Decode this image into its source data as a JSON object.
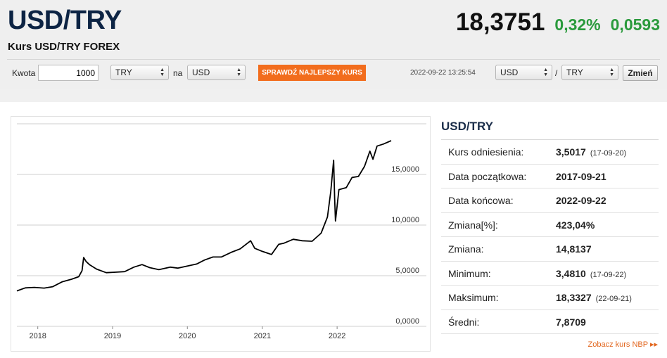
{
  "header": {
    "title": "USD/TRY",
    "subtitle": "Kurs USD/TRY FOREX",
    "price": "18,3751",
    "change_percent": "0,32%",
    "change_value": "0,0593",
    "change_color": "#2a9a3c"
  },
  "converter": {
    "amount_label": "Kwota",
    "amount_value": "1000",
    "from_currency": "TRY",
    "to_label": "na",
    "to_currency": "USD",
    "best_rate_button": "SPRAWDŹ NAJLEPSZY KURS",
    "timestamp": "2022-09-22 13:25:54",
    "pair_base": "USD",
    "pair_separator": "/",
    "pair_quote": "TRY",
    "change_button": "Zmień",
    "accent_color": "#f26d1d"
  },
  "chart_data": {
    "type": "line",
    "title": "",
    "xlabel": "",
    "ylabel": "",
    "x_ticks": [
      "2018",
      "2019",
      "2020",
      "2021",
      "2022"
    ],
    "y_ticks": [
      "0,0000",
      "5,0000",
      "10,0000",
      "15,0000"
    ],
    "ylim": [
      0,
      20
    ],
    "xlim": [
      "2017-09-21",
      "2022-09-22"
    ],
    "grid": true,
    "series": [
      {
        "name": "",
        "x": [
          "2017-09-21",
          "2017-11-01",
          "2017-12-15",
          "2018-02-01",
          "2018-03-15",
          "2018-05-01",
          "2018-06-15",
          "2018-07-20",
          "2018-08-05",
          "2018-08-13",
          "2018-08-25",
          "2018-09-10",
          "2018-10-15",
          "2018-12-01",
          "2019-01-15",
          "2019-03-01",
          "2019-04-15",
          "2019-05-25",
          "2019-07-01",
          "2019-08-15",
          "2019-10-10",
          "2019-11-15",
          "2020-01-01",
          "2020-02-15",
          "2020-03-25",
          "2020-05-05",
          "2020-06-15",
          "2020-08-01",
          "2020-09-15",
          "2020-11-05",
          "2020-11-25",
          "2021-01-01",
          "2021-02-15",
          "2021-03-22",
          "2021-04-15",
          "2021-06-01",
          "2021-07-15",
          "2021-09-01",
          "2021-10-15",
          "2021-11-15",
          "2021-12-01",
          "2021-12-15",
          "2021-12-20",
          "2021-12-24",
          "2022-01-10",
          "2022-02-15",
          "2022-03-15",
          "2022-04-15",
          "2022-05-15",
          "2022-06-10",
          "2022-06-25",
          "2022-07-15",
          "2022-08-15",
          "2022-09-22"
        ],
        "y": [
          3.5,
          3.8,
          3.85,
          3.78,
          3.92,
          4.4,
          4.65,
          4.9,
          5.5,
          6.8,
          6.4,
          6.1,
          5.65,
          5.3,
          5.35,
          5.4,
          5.85,
          6.1,
          5.8,
          5.6,
          5.85,
          5.75,
          5.95,
          6.15,
          6.55,
          6.85,
          6.85,
          7.3,
          7.65,
          8.45,
          7.7,
          7.4,
          7.1,
          8.1,
          8.2,
          8.6,
          8.45,
          8.4,
          9.2,
          10.8,
          13.3,
          16.4,
          12.7,
          10.4,
          13.5,
          13.7,
          14.7,
          14.8,
          15.8,
          17.3,
          16.5,
          17.8,
          18.0,
          18.33
        ]
      }
    ]
  },
  "stats": {
    "title": "USD/TRY",
    "rows": [
      {
        "label": "Kurs odniesienia:",
        "value": "3,5017",
        "date": "(17-09-20)"
      },
      {
        "label": "Data początkowa:",
        "value": "2017-09-21",
        "date": ""
      },
      {
        "label": "Data końcowa:",
        "value": "2022-09-22",
        "date": ""
      },
      {
        "label": "Zmiana[%]:",
        "value": "423,04%",
        "date": ""
      },
      {
        "label": "Zmiana:",
        "value": "14,8137",
        "date": ""
      },
      {
        "label": "Minimum:",
        "value": "3,4810",
        "date": "(17-09-22)"
      },
      {
        "label": "Maksimum:",
        "value": "18,3327",
        "date": "(22-09-21)"
      },
      {
        "label": "Średni:",
        "value": "7,8709",
        "date": ""
      }
    ],
    "nbp_link": "Zobacz kurs NBP",
    "nbp_arrows": "▸▸"
  }
}
